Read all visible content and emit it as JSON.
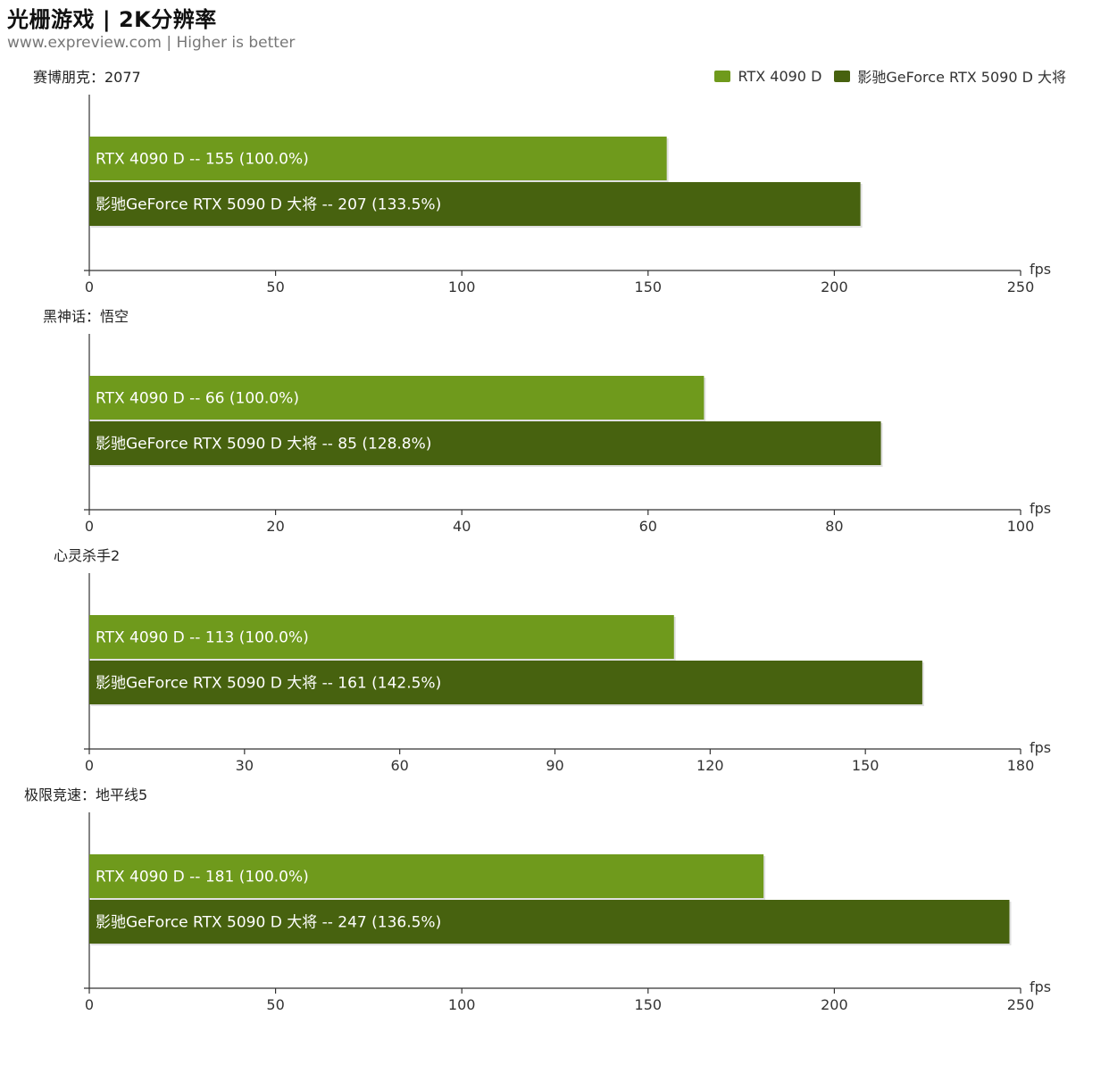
{
  "header": {
    "title": "光栅游戏 | 2K分辨率",
    "subtitle": "www.expreview.com | Higher is better"
  },
  "legend": {
    "items": [
      {
        "label": "RTX 4090 D",
        "color": "#6f9a1c"
      },
      {
        "label": "影驰GeForce RTX 5090 D 大将",
        "color": "#47620f"
      }
    ]
  },
  "colors": {
    "series_a": "#6f9a1c",
    "series_b": "#47620f",
    "axis": "#333333"
  },
  "chart_data": [
    {
      "type": "bar",
      "orientation": "horizontal",
      "title": "赛博朋克：2077",
      "unit": "fps",
      "xlim": [
        0,
        250
      ],
      "ticks": [
        0,
        50,
        100,
        150,
        200,
        250
      ],
      "series": [
        {
          "name": "RTX 4090 D",
          "value": 155,
          "label": "RTX 4090 D  --  155 (100.0%)"
        },
        {
          "name": "影驰GeForce RTX 5090 D 大将",
          "value": 207,
          "label": "影驰GeForce RTX 5090 D 大将  --  207 (133.5%)"
        }
      ]
    },
    {
      "type": "bar",
      "orientation": "horizontal",
      "title": "黑神话：悟空",
      "unit": "fps",
      "xlim": [
        0,
        100
      ],
      "ticks": [
        0,
        20,
        40,
        60,
        80,
        100
      ],
      "series": [
        {
          "name": "RTX 4090 D",
          "value": 66,
          "label": "RTX 4090 D  --  66 (100.0%)"
        },
        {
          "name": "影驰GeForce RTX 5090 D 大将",
          "value": 85,
          "label": "影驰GeForce RTX 5090 D 大将  --  85 (128.8%)"
        }
      ]
    },
    {
      "type": "bar",
      "orientation": "horizontal",
      "title": "心灵杀手2",
      "unit": "fps",
      "xlim": [
        0,
        180
      ],
      "ticks": [
        0,
        30,
        60,
        90,
        120,
        150,
        180
      ],
      "series": [
        {
          "name": "RTX 4090 D",
          "value": 113,
          "label": "RTX 4090 D  --  113 (100.0%)"
        },
        {
          "name": "影驰GeForce RTX 5090 D 大将",
          "value": 161,
          "label": "影驰GeForce RTX 5090 D 大将  --  161 (142.5%)"
        }
      ]
    },
    {
      "type": "bar",
      "orientation": "horizontal",
      "title": "极限竞速：地平线5",
      "unit": "fps",
      "xlim": [
        0,
        250
      ],
      "ticks": [
        0,
        50,
        100,
        150,
        200,
        250
      ],
      "series": [
        {
          "name": "RTX 4090 D",
          "value": 181,
          "label": "RTX 4090 D  --  181 (100.0%)"
        },
        {
          "name": "影驰GeForce RTX 5090 D 大将",
          "value": 247,
          "label": "影驰GeForce RTX 5090 D 大将  --  247 (136.5%)"
        }
      ]
    }
  ]
}
